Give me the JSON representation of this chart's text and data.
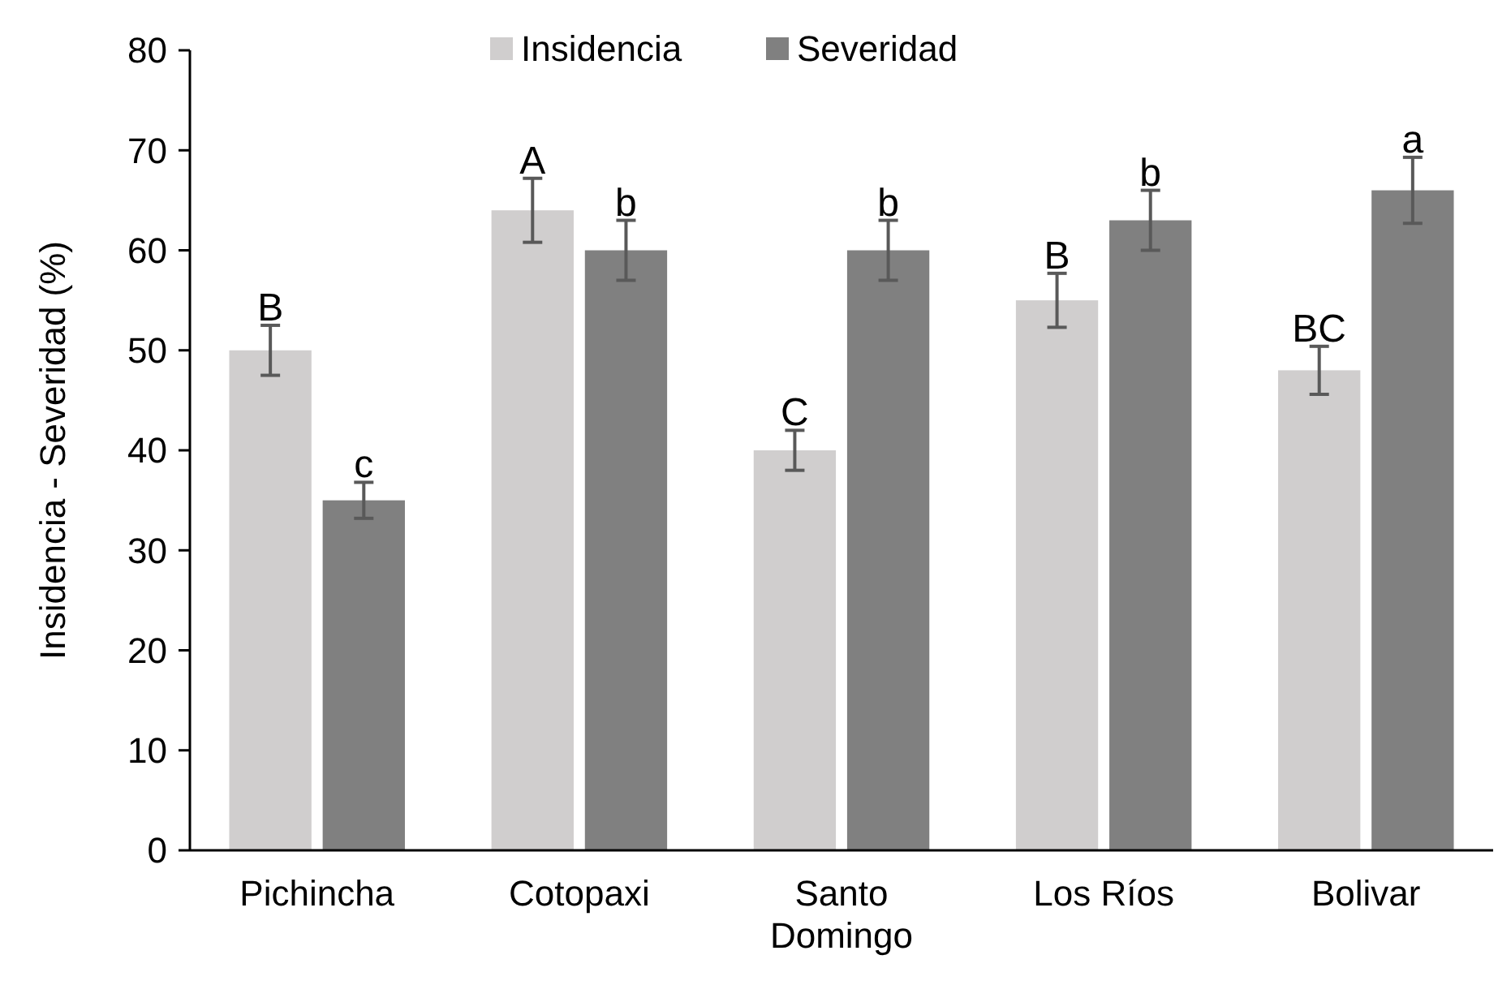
{
  "chart_data": {
    "type": "bar",
    "ylabel": "Insidencia - Severidad (%)",
    "categories": [
      "Pichincha",
      "Cotopaxi",
      "Santo Domingo",
      "Los Ríos",
      "Bolivar"
    ],
    "ylim": [
      0,
      80
    ],
    "yticks": [
      0,
      10,
      20,
      30,
      40,
      50,
      60,
      70,
      80
    ],
    "legend": "top",
    "grid": false,
    "series": [
      {
        "name": "Insidencia",
        "color": "#d0cece",
        "values": [
          50,
          64,
          40,
          55,
          48
        ],
        "errors": [
          2.5,
          3.2,
          2,
          2.7,
          2.4
        ],
        "value_labels": [
          "B",
          "A",
          "C",
          "B",
          "BC"
        ]
      },
      {
        "name": "Severidad",
        "color": "#808080",
        "values": [
          35,
          60,
          60,
          63,
          66
        ],
        "errors": [
          1.8,
          3,
          3,
          3,
          3.3
        ],
        "value_labels": [
          "c",
          "b",
          "b",
          "b",
          "a"
        ]
      }
    ]
  }
}
